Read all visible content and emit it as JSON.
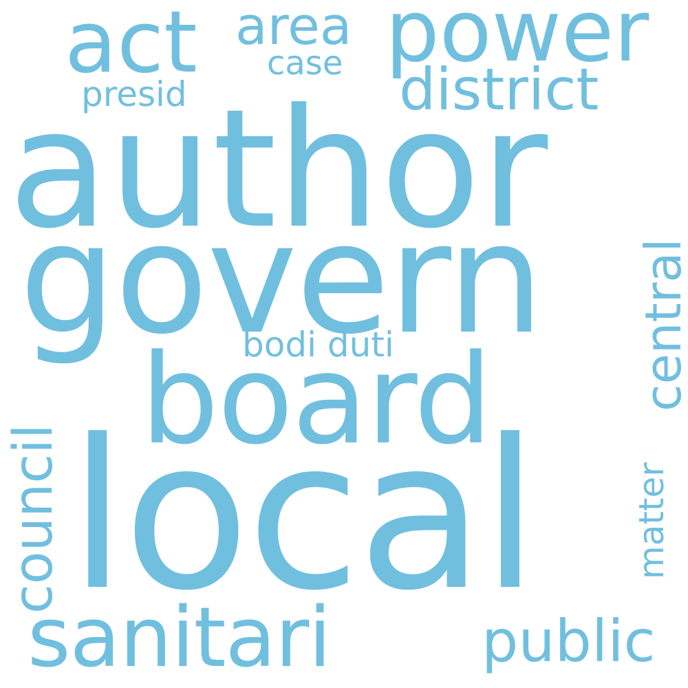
{
  "colors": {
    "background": "#ffffff",
    "word": "#71bfdf"
  },
  "words": {
    "author": "author",
    "govern": "govern",
    "local": "local",
    "board": "board",
    "power": "power",
    "act": "act",
    "area": "area",
    "case": "case",
    "district": "district",
    "presid": "presid",
    "sanitari": "sanitari",
    "public": "public",
    "bodi_duti": "bodi duti",
    "central": "central",
    "council": "council",
    "matter": "matter"
  }
}
